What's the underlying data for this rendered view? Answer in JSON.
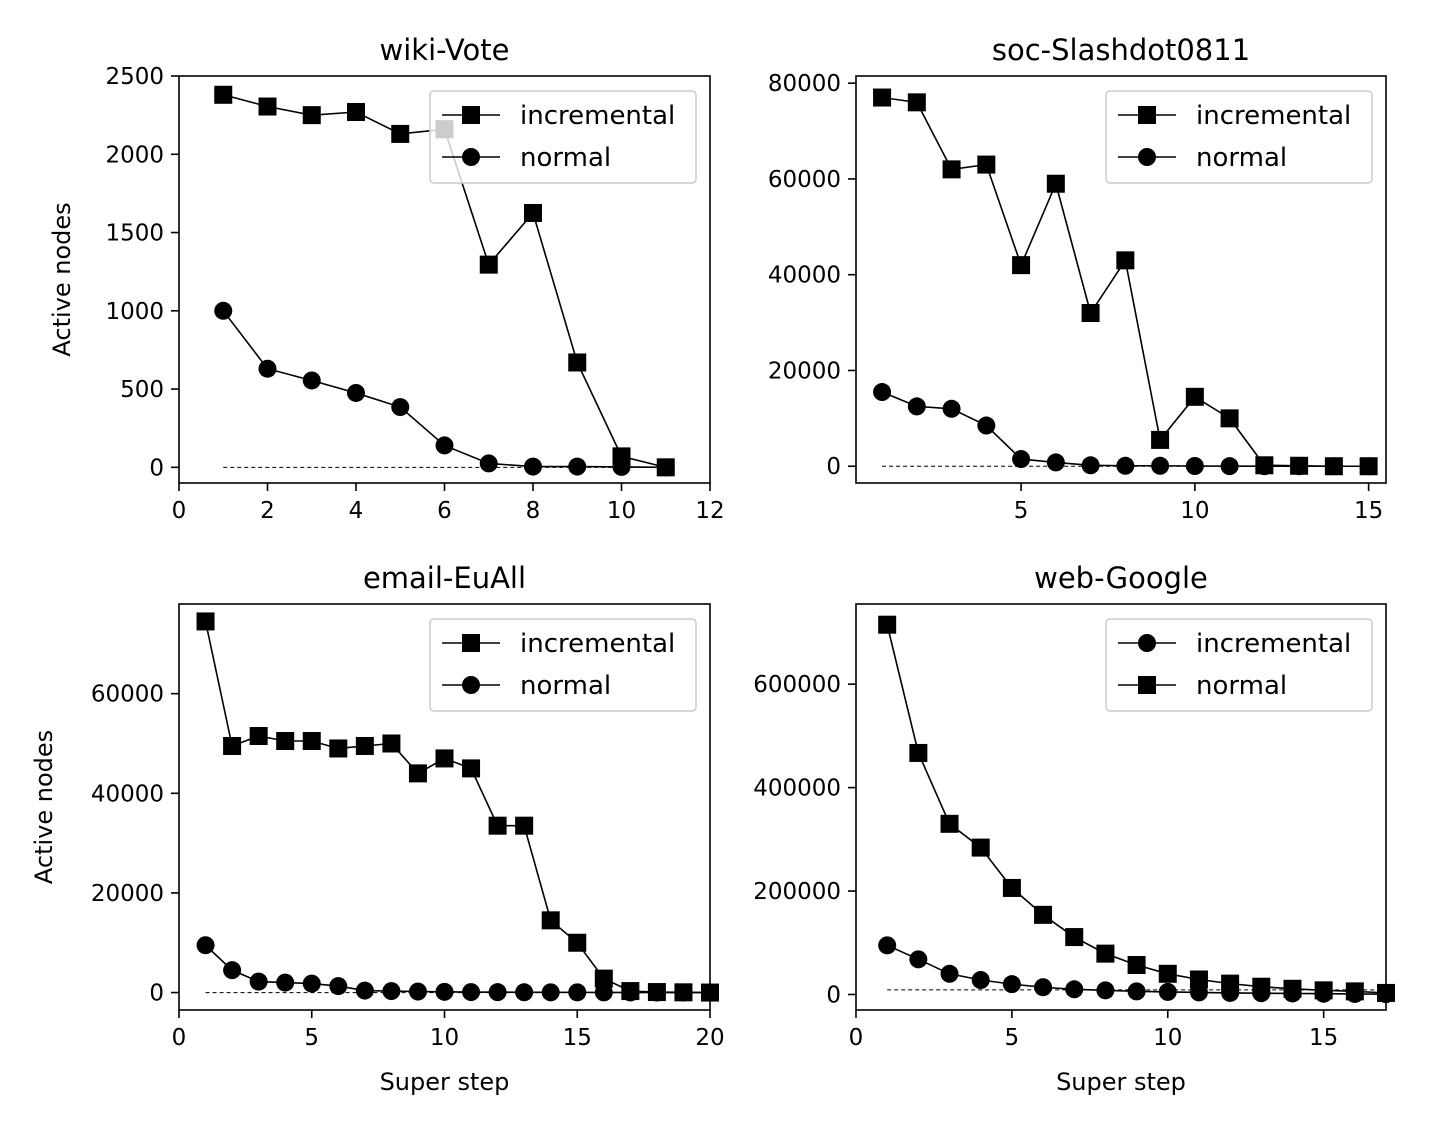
{
  "chart_data": [
    {
      "type": "line",
      "title": "wiki-Vote",
      "xlabel": "",
      "ylabel": "Active nodes",
      "xlim": [
        0,
        12
      ],
      "ylim": [
        -100,
        2500
      ],
      "xticks": [
        "0",
        "2",
        "4",
        "6",
        "8",
        "10",
        "12"
      ],
      "yticks": [
        "0",
        "500",
        "1000",
        "1500",
        "2000",
        "2500"
      ],
      "legend": "top-right",
      "grid": false,
      "series": [
        {
          "name": "incremental",
          "marker": "square",
          "x": [
            1,
            2,
            3,
            4,
            5,
            6,
            7,
            8,
            9,
            10,
            11
          ],
          "values": [
            2380,
            2305,
            2250,
            2270,
            2130,
            2160,
            1295,
            1625,
            670,
            70,
            0
          ]
        },
        {
          "name": "normal",
          "marker": "circle",
          "x": [
            1,
            2,
            3,
            4,
            5,
            6,
            7,
            8,
            9,
            10,
            11
          ],
          "values": [
            1000,
            630,
            555,
            475,
            385,
            140,
            25,
            5,
            5,
            3,
            0
          ]
        }
      ],
      "baseline": {
        "x": [
          1,
          11
        ],
        "y": 0,
        "style": "dashed"
      }
    },
    {
      "type": "line",
      "title": "soc-Slashdot0811",
      "xlabel": "",
      "ylabel": "",
      "xlim": [
        0.25,
        15.5
      ],
      "ylim": [
        -3500,
        81500
      ],
      "xticks": [
        "5",
        "10",
        "15"
      ],
      "yticks": [
        "0",
        "20000",
        "40000",
        "60000",
        "80000"
      ],
      "legend": "top-right",
      "grid": false,
      "series": [
        {
          "name": "incremental",
          "marker": "square",
          "x": [
            1,
            2,
            3,
            4,
            5,
            6,
            7,
            8,
            9,
            10,
            11,
            12,
            13,
            14,
            15
          ],
          "values": [
            77000,
            76000,
            62000,
            63000,
            42000,
            59000,
            32000,
            43000,
            5500,
            14500,
            10000,
            200,
            100,
            0,
            0
          ]
        },
        {
          "name": "normal",
          "marker": "circle",
          "x": [
            1,
            2,
            3,
            4,
            5,
            6,
            7,
            8,
            9,
            10,
            11,
            12,
            13,
            14,
            15
          ],
          "values": [
            15500,
            12500,
            12000,
            8500,
            1500,
            800,
            200,
            100,
            100,
            50,
            20,
            10,
            10,
            0,
            0
          ]
        }
      ],
      "baseline": {
        "x": [
          1,
          15
        ],
        "y": 0,
        "style": "dashed"
      }
    },
    {
      "type": "line",
      "title": "email-EuAll",
      "xlabel": "Super step",
      "ylabel": "Active nodes",
      "xlim": [
        0,
        20
      ],
      "ylim": [
        -3500,
        78000
      ],
      "xticks": [
        "0",
        "5",
        "10",
        "15",
        "20"
      ],
      "yticks": [
        "0",
        "20000",
        "40000",
        "60000"
      ],
      "legend": "top-right",
      "grid": false,
      "series": [
        {
          "name": "incremental",
          "marker": "square",
          "x": [
            1,
            2,
            3,
            4,
            5,
            6,
            7,
            8,
            9,
            10,
            11,
            12,
            13,
            14,
            15,
            16,
            17,
            18,
            19,
            20
          ],
          "values": [
            74500,
            49500,
            51500,
            50500,
            50500,
            49000,
            49500,
            50000,
            44000,
            47000,
            45000,
            33500,
            33500,
            14500,
            10000,
            2800,
            300,
            100,
            50,
            0
          ]
        },
        {
          "name": "normal",
          "marker": "circle",
          "x": [
            1,
            2,
            3,
            4,
            5,
            6,
            7,
            8,
            9,
            10,
            11,
            12,
            13,
            14,
            15,
            16,
            17,
            18,
            19,
            20
          ],
          "values": [
            9500,
            4500,
            2200,
            2000,
            1800,
            1300,
            400,
            300,
            200,
            150,
            100,
            80,
            60,
            50,
            40,
            30,
            20,
            10,
            5,
            0
          ]
        }
      ],
      "baseline": {
        "x": [
          1,
          20
        ],
        "y": 0,
        "style": "dashed"
      }
    },
    {
      "type": "line",
      "title": "web-Google",
      "xlabel": "Super step",
      "ylabel": "",
      "xlim": [
        0,
        17
      ],
      "ylim": [
        -30000,
        755000
      ],
      "xticks": [
        "0",
        "5",
        "10",
        "15"
      ],
      "yticks": [
        "0",
        "200000",
        "400000",
        "600000"
      ],
      "legend": "top-right",
      "grid": false,
      "series": [
        {
          "name": "incremental",
          "marker": "circle",
          "x": [
            1,
            2,
            3,
            4,
            5,
            6,
            7,
            8,
            9,
            10,
            11,
            12,
            13,
            14,
            15,
            16,
            17
          ],
          "values": [
            95000,
            68000,
            40000,
            28000,
            20000,
            14000,
            10000,
            8000,
            6000,
            5000,
            4000,
            3000,
            2500,
            2000,
            1500,
            1000,
            500
          ]
        },
        {
          "name": "normal",
          "marker": "square",
          "x": [
            1,
            2,
            3,
            4,
            5,
            6,
            7,
            8,
            9,
            10,
            11,
            12,
            13,
            14,
            15,
            16,
            17
          ],
          "values": [
            715000,
            467000,
            330000,
            284000,
            206000,
            154000,
            111000,
            79000,
            57000,
            40000,
            29000,
            21000,
            15000,
            11000,
            8000,
            6000,
            3000
          ]
        }
      ],
      "baseline": {
        "x": [
          1,
          17
        ],
        "y": 9000,
        "style": "dashed"
      }
    }
  ]
}
